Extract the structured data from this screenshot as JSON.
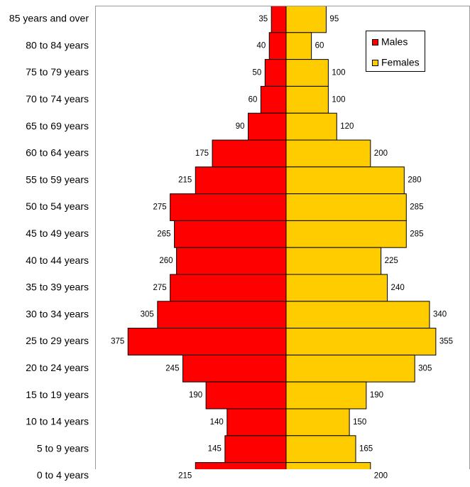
{
  "chart_data": {
    "type": "pyramid",
    "categories": [
      "85 years and over",
      "80 to 84 years",
      "75 to 79 years",
      "70 to 74 years",
      "65 to 69 years",
      "60 to 64 years",
      "55 to 59 years",
      "50 to 54 years",
      "45 to 49 years",
      "40 to 44 years",
      "35 to 39 years",
      "30 to 34 years",
      "25 to 29 years",
      "20 to 24 years",
      "15 to 19 years",
      "10 to 14 years",
      "5 to 9 years",
      "0 to 4 years"
    ],
    "series": [
      {
        "name": "Males",
        "color": "#ff0000",
        "values": [
          35,
          40,
          50,
          60,
          90,
          175,
          215,
          275,
          265,
          260,
          275,
          305,
          375,
          245,
          190,
          140,
          145,
          215
        ]
      },
      {
        "name": "Females",
        "color": "#ffcc00",
        "values": [
          95,
          60,
          100,
          100,
          120,
          200,
          280,
          285,
          285,
          225,
          240,
          340,
          355,
          305,
          190,
          150,
          165,
          200
        ]
      }
    ],
    "legend": "upper right"
  }
}
